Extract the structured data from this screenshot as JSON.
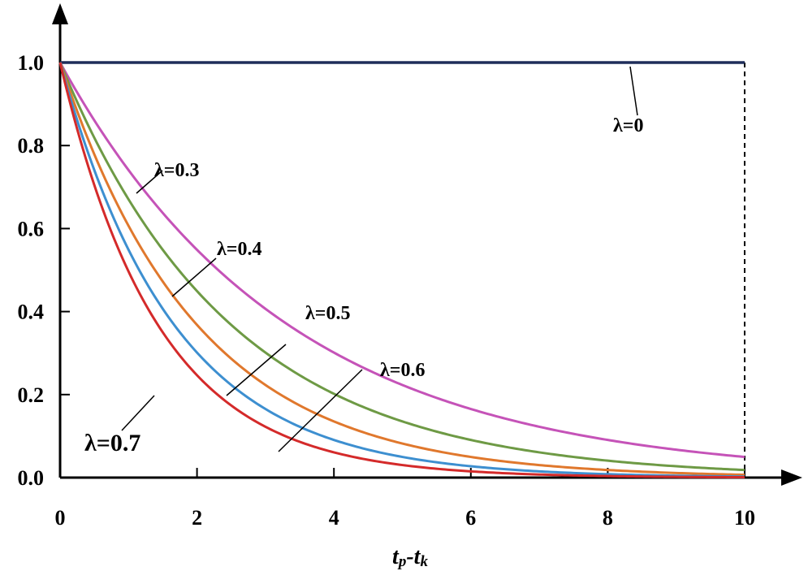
{
  "chart_data": {
    "type": "line",
    "title": "",
    "xlabel": {
      "base1": "t",
      "sub1": "p",
      "dash": "-",
      "base2": "t",
      "sub2": "k"
    },
    "ylabel": "",
    "xlim": [
      0,
      10
    ],
    "ylim": [
      0,
      1.0
    ],
    "x_ticks": [
      "0",
      "2",
      "4",
      "6",
      "8",
      "10"
    ],
    "y_ticks": [
      "0.0",
      "0.2",
      "0.4",
      "0.6",
      "0.8",
      "1.0"
    ],
    "grid": false,
    "legend": "none",
    "series_formula": "y = exp(-lambda * x)",
    "series": [
      {
        "label": "λ=0",
        "lambda": 0.0,
        "color": "#1f2d5a"
      },
      {
        "label": "λ=0.3",
        "lambda": 0.3,
        "color": "#c553b8"
      },
      {
        "label": "λ=0.4",
        "lambda": 0.4,
        "color": "#6e9a45"
      },
      {
        "label": "λ=0.5",
        "lambda": 0.5,
        "color": "#e0782d"
      },
      {
        "label": "λ=0.6",
        "lambda": 0.6,
        "color": "#3d8fd0"
      },
      {
        "label": "λ=0.7",
        "lambda": 0.7,
        "color": "#d42a2a"
      }
    ],
    "annotations": [
      {
        "text": "λ=0",
        "series": 0
      },
      {
        "text": "λ=0.3",
        "series": 1
      },
      {
        "text": "λ=0.4",
        "series": 2
      },
      {
        "text": "λ=0.5",
        "series": 3
      },
      {
        "text": "λ=0.6",
        "series": 4
      },
      {
        "text": "λ=0.7",
        "series": 5
      }
    ],
    "reference_line": {
      "x": 10,
      "style": "dashed"
    }
  }
}
